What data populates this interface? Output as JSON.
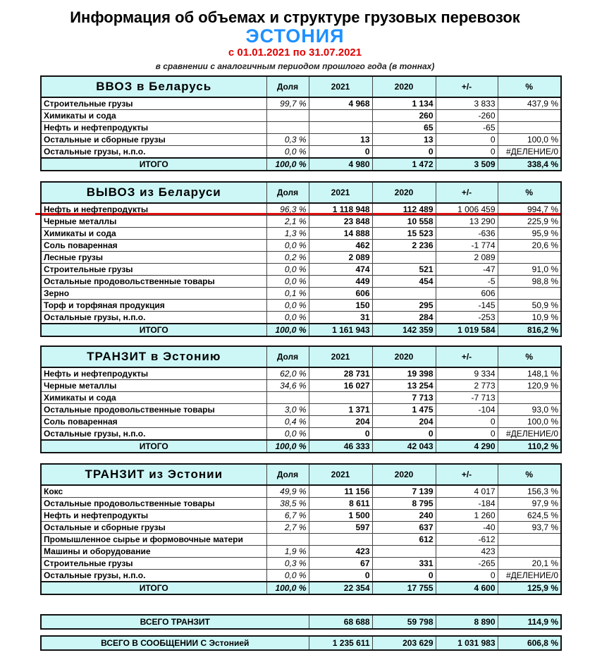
{
  "header": {
    "title": "Информация об объемах и структуре грузовых перевозок",
    "country": "ЭСТОНИЯ",
    "period": "с 01.01.2021 по 31.07.2021",
    "subtitle": "в сравнении с аналогичным периодом прошлого года (в тоннах)"
  },
  "sections": [
    {
      "title": "ВВОЗ  в  Беларусь",
      "columns": [
        "Доля",
        "2021",
        "2020",
        "+/-",
        "%"
      ],
      "rows": [
        {
          "name": "Строительные грузы",
          "share": "99,7 %",
          "y2021": "4 968",
          "y2020": "1 134",
          "diff": "3 833",
          "pct": "437,9 %"
        },
        {
          "name": "Химикаты и сода",
          "y2020": "260",
          "diff": "-260"
        },
        {
          "name": "Нефть и нефтепродукты",
          "y2020": "65",
          "diff": "-65"
        },
        {
          "name": "Остальные и сборные грузы",
          "share": "0,3 %",
          "y2021": "13",
          "y2020": "13",
          "diff": "0",
          "pct": "100,0 %"
        },
        {
          "name": "Остальные грузы, н.п.о.",
          "share": "0,0 %",
          "y2021": "0",
          "y2020": "0",
          "diff": "0",
          "pct": "#ДЕЛЕНИЕ/0"
        }
      ],
      "total": {
        "name": "ИТОГО",
        "share": "100,0 %",
        "y2021": "4 980",
        "y2020": "1 472",
        "diff": "3 509",
        "pct": "338,4 %"
      }
    },
    {
      "title": "ВЫВОЗ  из  Беларуси",
      "columns": [
        "Доля",
        "2021",
        "2020",
        "+/-",
        "%"
      ],
      "rows": [
        {
          "name": "Нефть и нефтепродукты",
          "share": "96,3 %",
          "y2021": "1 118 948",
          "y2020": "112 489",
          "diff": "1 006 459",
          "pct": "994,7 %"
        },
        {
          "name": "Черные металлы",
          "share": "2,1 %",
          "y2021": "23 848",
          "y2020": "10 558",
          "diff": "13 290",
          "pct": "225,9 %"
        },
        {
          "name": "Химикаты и сода",
          "share": "1,3 %",
          "y2021": "14 888",
          "y2020": "15 523",
          "diff": "-636",
          "pct": "95,9 %"
        },
        {
          "name": "Соль поваренная",
          "share": "0,0 %",
          "y2021": "462",
          "y2020": "2 236",
          "diff": "-1 774",
          "pct": "20,6 %"
        },
        {
          "name": "Лесные грузы",
          "share": "0,2 %",
          "y2021": "2 089",
          "diff": "2 089"
        },
        {
          "name": "Строительные грузы",
          "share": "0,0 %",
          "y2021": "474",
          "y2020": "521",
          "diff": "-47",
          "pct": "91,0 %"
        },
        {
          "name": "Остальные продовольственные товары",
          "share": "0,0 %",
          "y2021": "449",
          "y2020": "454",
          "diff": "-5",
          "pct": "98,8 %"
        },
        {
          "name": "Зерно",
          "share": "0,1 %",
          "y2021": "606",
          "diff": "606"
        },
        {
          "name": "Торф и торфяная продукция",
          "share": "0,0 %",
          "y2021": "150",
          "y2020": "295",
          "diff": "-145",
          "pct": "50,9 %"
        },
        {
          "name": "Остальные грузы, н.п.о.",
          "share": "0,0 %",
          "y2021": "31",
          "y2020": "284",
          "diff": "-253",
          "pct": "10,9 %"
        }
      ],
      "total": {
        "name": "ИТОГО",
        "share": "100,0 %",
        "y2021": "1 161 943",
        "y2020": "142 359",
        "diff": "1 019 584",
        "pct": "816,2 %"
      }
    },
    {
      "title": "ТРАНЗИТ  в  Эстонию",
      "columns": [
        "Доля",
        "2021",
        "2020",
        "+/-",
        "%"
      ],
      "rows": [
        {
          "name": "Нефть и нефтепродукты",
          "share": "62,0 %",
          "y2021": "28 731",
          "y2020": "19 398",
          "diff": "9 334",
          "pct": "148,1 %"
        },
        {
          "name": "Черные металлы",
          "share": "34,6 %",
          "y2021": "16 027",
          "y2020": "13 254",
          "diff": "2 773",
          "pct": "120,9 %"
        },
        {
          "name": "Химикаты и сода",
          "y2020": "7 713",
          "diff": "-7 713"
        },
        {
          "name": "Остальные продовольственные товары",
          "share": "3,0 %",
          "y2021": "1 371",
          "y2020": "1 475",
          "diff": "-104",
          "pct": "93,0 %"
        },
        {
          "name": "Соль поваренная",
          "share": "0,4 %",
          "y2021": "204",
          "y2020": "204",
          "diff": "0",
          "pct": "100,0 %"
        },
        {
          "name": "Остальные грузы, н.п.о.",
          "share": "0,0 %",
          "y2021": "0",
          "y2020": "0",
          "diff": "0",
          "pct": "#ДЕЛЕНИЕ/0"
        }
      ],
      "total": {
        "name": "ИТОГО",
        "share": "100,0 %",
        "y2021": "46 333",
        "y2020": "42 043",
        "diff": "4 290",
        "pct": "110,2 %"
      }
    },
    {
      "title": "ТРАНЗИТ  из  Эстонии",
      "columns": [
        "Доля",
        "2021",
        "2020",
        "+/-",
        "%"
      ],
      "rows": [
        {
          "name": "Кокс",
          "share": "49,9 %",
          "y2021": "11 156",
          "y2020": "7 139",
          "diff": "4 017",
          "pct": "156,3 %"
        },
        {
          "name": "Остальные продовольственные товары",
          "share": "38,5 %",
          "y2021": "8 611",
          "y2020": "8 795",
          "diff": "-184",
          "pct": "97,9 %"
        },
        {
          "name": "Нефть и нефтепродукты",
          "share": "6,7 %",
          "y2021": "1 500",
          "y2020": "240",
          "diff": "1 260",
          "pct": "624,5 %"
        },
        {
          "name": "Остальные и сборные грузы",
          "share": "2,7 %",
          "y2021": "597",
          "y2020": "637",
          "diff": "-40",
          "pct": "93,7 %"
        },
        {
          "name": "Промышленное сырье и формовочные матери",
          "y2020": "612",
          "diff": "-612"
        },
        {
          "name": "Машины и оборудование",
          "share": "1,9 %",
          "y2021": "423",
          "diff": "423"
        },
        {
          "name": "Строительные грузы",
          "share": "0,3 %",
          "y2021": "67",
          "y2020": "331",
          "diff": "-265",
          "pct": "20,1 %"
        },
        {
          "name": "Остальные грузы, н.п.о.",
          "share": "0,0 %",
          "y2021": "0",
          "y2020": "0",
          "diff": "0",
          "pct": "#ДЕЛЕНИЕ/0"
        }
      ],
      "total": {
        "name": "ИТОГО",
        "share": "100,0 %",
        "y2021": "22 354",
        "y2020": "17 755",
        "diff": "4 600",
        "pct": "125,9 %"
      }
    }
  ],
  "summary": [
    {
      "name": "ВСЕГО ТРАНЗИТ",
      "y2021": "68 688",
      "y2020": "59 798",
      "diff": "8 890",
      "pct": "114,9 %"
    },
    {
      "name": "ВСЕГО В СООБЩЕНИИ С Эстонией",
      "y2021": "1 235 611",
      "y2020": "203 629",
      "diff": "1 031 983",
      "pct": "606,8 %"
    }
  ]
}
